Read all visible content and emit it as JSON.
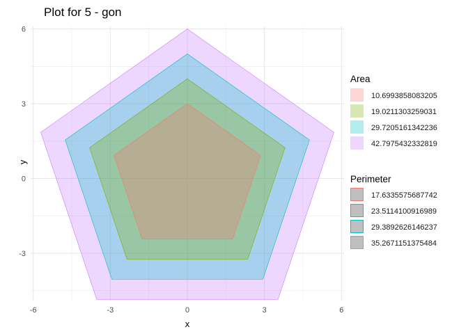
{
  "chart_data": {
    "type": "area",
    "title": "Plot for 5 - gon",
    "xlabel": "x",
    "ylabel": "y",
    "xlim": [
      -6.1,
      6.1
    ],
    "ylim": [
      -4.9,
      6.1
    ],
    "x_ticks": [
      -6,
      -3,
      0,
      3,
      6
    ],
    "y_ticks": [
      -3,
      0,
      3,
      6
    ],
    "x_tick_labels": [
      "-6",
      "-3",
      "0",
      "3",
      "6"
    ],
    "y_tick_labels": [
      "-3",
      "0",
      "3",
      "6"
    ],
    "grid": true,
    "legend_position": "right",
    "series": [
      {
        "area": "10.6993858083205",
        "perimeter": "17.6335575687742",
        "fill": "#F8766D",
        "stroke": "#F8766D",
        "points": [
          [
            0,
            3
          ],
          [
            2.853,
            0.927
          ],
          [
            1.763,
            -2.427
          ],
          [
            -1.763,
            -2.427
          ],
          [
            -2.853,
            0.927
          ]
        ]
      },
      {
        "area": "19.0211303259031",
        "perimeter": "23.5114100916989",
        "fill": "#7CAE00",
        "stroke": "#7CAE00",
        "points": [
          [
            0,
            4
          ],
          [
            3.804,
            1.236
          ],
          [
            2.351,
            -3.236
          ],
          [
            -2.351,
            -3.236
          ],
          [
            -3.804,
            1.236
          ]
        ]
      },
      {
        "area": "29.7205161342236",
        "perimeter": "29.3892626146237",
        "fill": "#00BFC4",
        "stroke": "#00BFC4",
        "points": [
          [
            0,
            5
          ],
          [
            4.755,
            1.545
          ],
          [
            2.939,
            -4.045
          ],
          [
            -2.939,
            -4.045
          ],
          [
            -4.755,
            1.545
          ]
        ]
      },
      {
        "area": "42.7975432332819",
        "perimeter": "35.2671151375484",
        "fill": "#C77CFF",
        "stroke": "#C77CFF",
        "points": [
          [
            0,
            6
          ],
          [
            5.706,
            1.854
          ],
          [
            3.527,
            -4.854
          ],
          [
            -3.527,
            -4.854
          ],
          [
            -5.706,
            1.854
          ]
        ]
      }
    ],
    "legends": [
      {
        "title": "Area",
        "labels": [
          "10.6993858083205",
          "19.0211303259031",
          "29.7205161342236",
          "42.7975432332819"
        ]
      },
      {
        "title": "Perimeter",
        "labels": [
          "17.6335575687742",
          "23.5114100916989",
          "29.3892626146237",
          "35.2671151375484"
        ]
      }
    ]
  }
}
